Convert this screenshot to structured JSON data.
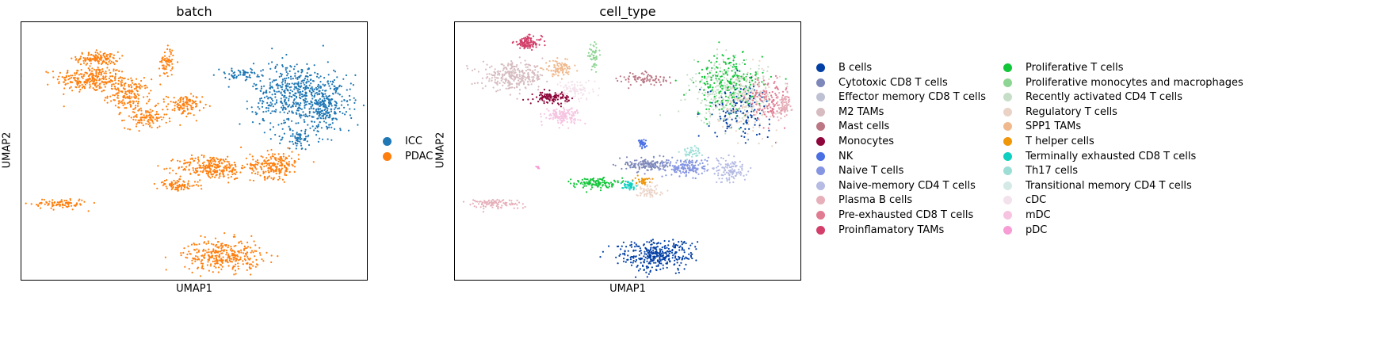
{
  "chart_data": [
    {
      "type": "scatter",
      "title": "batch",
      "xlabel": "UMAP1",
      "ylabel": "UMAP2",
      "grid": false,
      "legend_position": "right",
      "series": [
        {
          "name": "ICC",
          "color": "#1f77b4"
        },
        {
          "name": "PDAC",
          "color": "#ff7f0e"
        }
      ],
      "clusters": [
        {
          "series": "PDAC",
          "cx": 0.2,
          "cy": 0.78,
          "rx": 0.1,
          "ry": 0.05,
          "n": 260
        },
        {
          "series": "PDAC",
          "cx": 0.22,
          "cy": 0.86,
          "rx": 0.06,
          "ry": 0.025,
          "n": 130
        },
        {
          "series": "PDAC",
          "cx": 0.31,
          "cy": 0.72,
          "rx": 0.06,
          "ry": 0.06,
          "n": 170
        },
        {
          "series": "PDAC",
          "cx": 0.42,
          "cy": 0.85,
          "rx": 0.02,
          "ry": 0.06,
          "n": 60
        },
        {
          "series": "PDAC",
          "cx": 0.47,
          "cy": 0.68,
          "rx": 0.05,
          "ry": 0.04,
          "n": 110
        },
        {
          "series": "PDAC",
          "cx": 0.36,
          "cy": 0.63,
          "rx": 0.06,
          "ry": 0.04,
          "n": 110
        },
        {
          "series": "PDAC",
          "cx": 0.55,
          "cy": 0.44,
          "rx": 0.1,
          "ry": 0.045,
          "n": 260
        },
        {
          "series": "PDAC",
          "cx": 0.73,
          "cy": 0.45,
          "rx": 0.07,
          "ry": 0.05,
          "n": 210
        },
        {
          "series": "PDAC",
          "cx": 0.45,
          "cy": 0.37,
          "rx": 0.06,
          "ry": 0.02,
          "n": 90
        },
        {
          "series": "PDAC",
          "cx": 0.11,
          "cy": 0.3,
          "rx": 0.08,
          "ry": 0.02,
          "n": 90
        },
        {
          "series": "PDAC",
          "cx": 0.58,
          "cy": 0.1,
          "rx": 0.11,
          "ry": 0.06,
          "n": 320
        },
        {
          "series": "ICC",
          "cx": 0.79,
          "cy": 0.72,
          "rx": 0.12,
          "ry": 0.13,
          "n": 520
        },
        {
          "series": "ICC",
          "cx": 0.88,
          "cy": 0.67,
          "rx": 0.07,
          "ry": 0.1,
          "n": 220
        },
        {
          "series": "ICC",
          "cx": 0.63,
          "cy": 0.8,
          "rx": 0.06,
          "ry": 0.02,
          "n": 60
        },
        {
          "series": "ICC",
          "cx": 0.8,
          "cy": 0.55,
          "rx": 0.05,
          "ry": 0.04,
          "n": 60
        }
      ]
    },
    {
      "type": "scatter",
      "title": "cell_type",
      "xlabel": "UMAP1",
      "ylabel": "UMAP2",
      "grid": false,
      "legend_position": "right",
      "series": [
        {
          "name": "B cells",
          "color": "#023fa5"
        },
        {
          "name": "Cytotoxic CD8 T cells",
          "color": "#7d87b9"
        },
        {
          "name": "Effector memory CD8 T cells",
          "color": "#bec1d4"
        },
        {
          "name": "M2 TAMs",
          "color": "#d6bcc0"
        },
        {
          "name": "Mast cells",
          "color": "#bb7784"
        },
        {
          "name": "Monocytes",
          "color": "#8e063b"
        },
        {
          "name": "NK",
          "color": "#4a6fe3"
        },
        {
          "name": "Naive T cells",
          "color": "#8595e1"
        },
        {
          "name": "Naive-memory CD4 T cells",
          "color": "#b5bbe3"
        },
        {
          "name": "Plasma B cells",
          "color": "#e6afb9"
        },
        {
          "name": "Pre-exhausted CD8 T cells",
          "color": "#e07b91"
        },
        {
          "name": "Proinflamatory TAMs",
          "color": "#d33f6a"
        },
        {
          "name": "Proliferative T cells",
          "color": "#11c638"
        },
        {
          "name": "Proliferative monocytes and macrophages",
          "color": "#8dd593"
        },
        {
          "name": "Recently activated CD4 T cells",
          "color": "#c6dec7"
        },
        {
          "name": "Regulatory T cells",
          "color": "#ead3c6"
        },
        {
          "name": "SPP1 TAMs",
          "color": "#f0b98d"
        },
        {
          "name": "T helper cells",
          "color": "#ef9708"
        },
        {
          "name": "Terminally exhausted CD8 T cells",
          "color": "#0fcfc0"
        },
        {
          "name": "Th17 cells",
          "color": "#9cded6"
        },
        {
          "name": "Transitional memory CD4 T cells",
          "color": "#d5eae7"
        },
        {
          "name": "cDC",
          "color": "#f3e1eb"
        },
        {
          "name": "mDC",
          "color": "#f6c4e1"
        },
        {
          "name": "pDC",
          "color": "#f79cd4"
        }
      ],
      "clusters": [
        {
          "series": "Proinflamatory TAMs",
          "cx": 0.21,
          "cy": 0.92,
          "rx": 0.04,
          "ry": 0.025,
          "n": 110
        },
        {
          "series": "Proliferative monocytes and macrophages",
          "cx": 0.4,
          "cy": 0.87,
          "rx": 0.015,
          "ry": 0.04,
          "n": 50
        },
        {
          "series": "M2 TAMs",
          "cx": 0.17,
          "cy": 0.79,
          "rx": 0.09,
          "ry": 0.05,
          "n": 300
        },
        {
          "series": "SPP1 TAMs",
          "cx": 0.3,
          "cy": 0.82,
          "rx": 0.04,
          "ry": 0.03,
          "n": 90
        },
        {
          "series": "Monocytes",
          "cx": 0.28,
          "cy": 0.71,
          "rx": 0.05,
          "ry": 0.02,
          "n": 110
        },
        {
          "series": "mDC",
          "cx": 0.31,
          "cy": 0.64,
          "rx": 0.05,
          "ry": 0.03,
          "n": 140
        },
        {
          "series": "cDC",
          "cx": 0.35,
          "cy": 0.74,
          "rx": 0.05,
          "ry": 0.04,
          "n": 80
        },
        {
          "series": "Mast cells",
          "cx": 0.55,
          "cy": 0.78,
          "rx": 0.07,
          "ry": 0.025,
          "n": 80
        },
        {
          "series": "Recently activated CD4 T cells",
          "cx": 0.79,
          "cy": 0.73,
          "rx": 0.11,
          "ry": 0.12,
          "n": 300
        },
        {
          "series": "Proliferative T cells",
          "cx": 0.79,
          "cy": 0.76,
          "rx": 0.1,
          "ry": 0.12,
          "n": 220
        },
        {
          "series": "B cells",
          "cx": 0.82,
          "cy": 0.66,
          "rx": 0.09,
          "ry": 0.1,
          "n": 140
        },
        {
          "series": "Regulatory T cells",
          "cx": 0.85,
          "cy": 0.7,
          "rx": 0.08,
          "ry": 0.12,
          "n": 160
        },
        {
          "series": "Pre-exhausted CD8 T cells",
          "cx": 0.9,
          "cy": 0.7,
          "rx": 0.05,
          "ry": 0.08,
          "n": 120
        },
        {
          "series": "Plasma B cells",
          "cx": 0.95,
          "cy": 0.68,
          "rx": 0.02,
          "ry": 0.05,
          "n": 80
        },
        {
          "series": "NK",
          "cx": 0.54,
          "cy": 0.53,
          "rx": 0.012,
          "ry": 0.02,
          "n": 30
        },
        {
          "series": "Cytotoxic CD8 T cells",
          "cx": 0.55,
          "cy": 0.45,
          "rx": 0.06,
          "ry": 0.025,
          "n": 140
        },
        {
          "series": "Naive T cells",
          "cx": 0.67,
          "cy": 0.44,
          "rx": 0.06,
          "ry": 0.035,
          "n": 160
        },
        {
          "series": "Naive-memory CD4 T cells",
          "cx": 0.79,
          "cy": 0.43,
          "rx": 0.05,
          "ry": 0.05,
          "n": 120
        },
        {
          "series": "Proliferative T cells",
          "cx": 0.4,
          "cy": 0.38,
          "rx": 0.06,
          "ry": 0.02,
          "n": 120
        },
        {
          "series": "T helper cells",
          "cx": 0.54,
          "cy": 0.39,
          "rx": 0.02,
          "ry": 0.015,
          "n": 40
        },
        {
          "series": "Terminally exhausted CD8 T cells",
          "cx": 0.5,
          "cy": 0.37,
          "rx": 0.02,
          "ry": 0.015,
          "n": 40
        },
        {
          "series": "Regulatory T cells",
          "cx": 0.56,
          "cy": 0.35,
          "rx": 0.04,
          "ry": 0.03,
          "n": 60
        },
        {
          "series": "Th17 cells",
          "cx": 0.68,
          "cy": 0.5,
          "rx": 0.03,
          "ry": 0.02,
          "n": 40
        },
        {
          "series": "Plasma B cells",
          "cx": 0.11,
          "cy": 0.3,
          "rx": 0.08,
          "ry": 0.02,
          "n": 100
        },
        {
          "series": "pDC",
          "cx": 0.24,
          "cy": 0.44,
          "rx": 0.005,
          "ry": 0.008,
          "n": 8
        },
        {
          "series": "B cells",
          "cx": 0.58,
          "cy": 0.1,
          "rx": 0.11,
          "ry": 0.06,
          "n": 340
        }
      ]
    }
  ]
}
